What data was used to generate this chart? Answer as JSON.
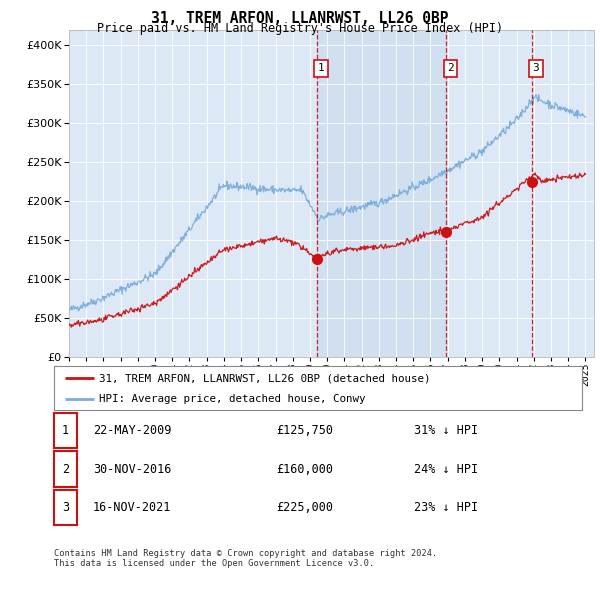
{
  "title": "31, TREM ARFON, LLANRWST, LL26 0BP",
  "subtitle": "Price paid vs. HM Land Registry's House Price Index (HPI)",
  "ylim": [
    0,
    420000
  ],
  "yticks": [
    0,
    50000,
    100000,
    150000,
    200000,
    250000,
    300000,
    350000,
    400000
  ],
  "background_color": "#ffffff",
  "plot_bg_color": "#dce8f5",
  "hpi_color": "#7aaddc",
  "price_color": "#cc1111",
  "vline_color": "#cc1111",
  "shade_color": "#ccddf0",
  "legend_label_price": "31, TREM ARFON, LLANRWST, LL26 0BP (detached house)",
  "legend_label_hpi": "HPI: Average price, detached house, Conwy",
  "transactions": [
    {
      "num": 1,
      "date": "22-MAY-2009",
      "price": 125750,
      "pct": "31%",
      "dir": "↓"
    },
    {
      "num": 2,
      "date": "30-NOV-2016",
      "price": 160000,
      "pct": "24%",
      "dir": "↓"
    },
    {
      "num": 3,
      "date": "16-NOV-2021",
      "price": 225000,
      "pct": "23%",
      "dir": "↓"
    }
  ],
  "transaction_years": [
    2009.38,
    2016.91,
    2021.87
  ],
  "transaction_prices": [
    125750,
    160000,
    225000
  ],
  "footer": "Contains HM Land Registry data © Crown copyright and database right 2024.\nThis data is licensed under the Open Government Licence v3.0."
}
